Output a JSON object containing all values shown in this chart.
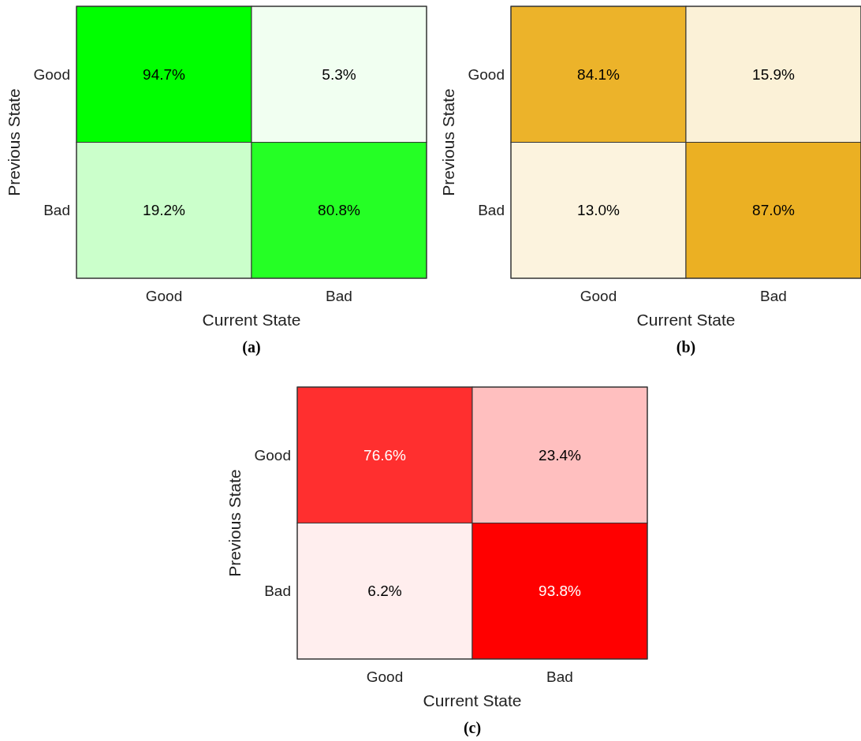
{
  "chart_data": [
    {
      "type": "heatmap",
      "xlabel": "Current State",
      "ylabel": "Previous State",
      "categories": [
        "Good",
        "Bad"
      ],
      "y_categories": [
        "Good",
        "Bad"
      ],
      "cells": [
        [
          94.7,
          5.3
        ],
        [
          19.2,
          80.8
        ]
      ],
      "cell_labels": [
        [
          "94.7%",
          "5.3%"
        ],
        [
          "19.2%",
          "80.8%"
        ]
      ],
      "color": "#00ff00",
      "annotations": [
        "(a)"
      ]
    },
    {
      "type": "heatmap",
      "xlabel": "Current State",
      "ylabel": "Previous State",
      "categories": [
        "Good",
        "Bad"
      ],
      "y_categories": [
        "Good",
        "Bad"
      ],
      "cells": [
        [
          84.1,
          15.9
        ],
        [
          13.0,
          87.0
        ]
      ],
      "cell_labels": [
        [
          "84.1%",
          "15.9%"
        ],
        [
          "13.0%",
          "87.0%"
        ]
      ],
      "color": "#ebb023",
      "annotations": [
        "(b)"
      ]
    },
    {
      "type": "heatmap",
      "xlabel": "Current State",
      "ylabel": "Previous State",
      "categories": [
        "Good",
        "Bad"
      ],
      "y_categories": [
        "Good",
        "Bad"
      ],
      "cells": [
        [
          76.6,
          23.4
        ],
        [
          6.2,
          93.8
        ]
      ],
      "cell_labels": [
        [
          "76.6%",
          "23.4%"
        ],
        [
          "6.2%",
          "93.8%"
        ]
      ],
      "color": "#ff0000",
      "annotations": [
        "(c)"
      ]
    }
  ]
}
